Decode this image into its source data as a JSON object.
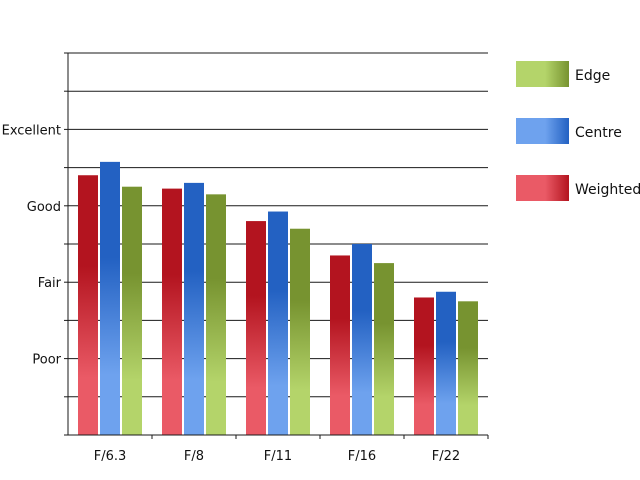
{
  "chart_data": {
    "type": "bar",
    "title": "",
    "xlabel": "",
    "ylabel": "",
    "categories": [
      "F/6.3",
      "F/8",
      "F/11",
      "F/16",
      "F/22"
    ],
    "series": [
      {
        "name": "Weighted",
        "values": [
          6.8,
          6.45,
          5.6,
          4.7,
          3.6
        ]
      },
      {
        "name": "Centre",
        "values": [
          7.15,
          6.6,
          5.85,
          5.0,
          3.75
        ]
      },
      {
        "name": "Edge",
        "values": [
          6.5,
          6.3,
          5.4,
          4.5,
          3.5
        ]
      }
    ],
    "ylim": [
      0,
      10
    ],
    "y_tick_labels": [
      {
        "value": 2,
        "label": "Poor"
      },
      {
        "value": 4,
        "label": "Fair"
      },
      {
        "value": 6,
        "label": "Good"
      },
      {
        "value": 8,
        "label": "Excellent"
      }
    ],
    "grid": true,
    "legend_position": "right",
    "legend_order": [
      "Edge",
      "Centre",
      "Weighted"
    ],
    "colors": {
      "Weighted": {
        "dark": "#b3141f",
        "light": "#ea5a66"
      },
      "Centre": {
        "dark": "#2361c2",
        "light": "#6ea2ee"
      },
      "Edge": {
        "dark": "#779330",
        "light": "#b4d46a"
      }
    }
  }
}
